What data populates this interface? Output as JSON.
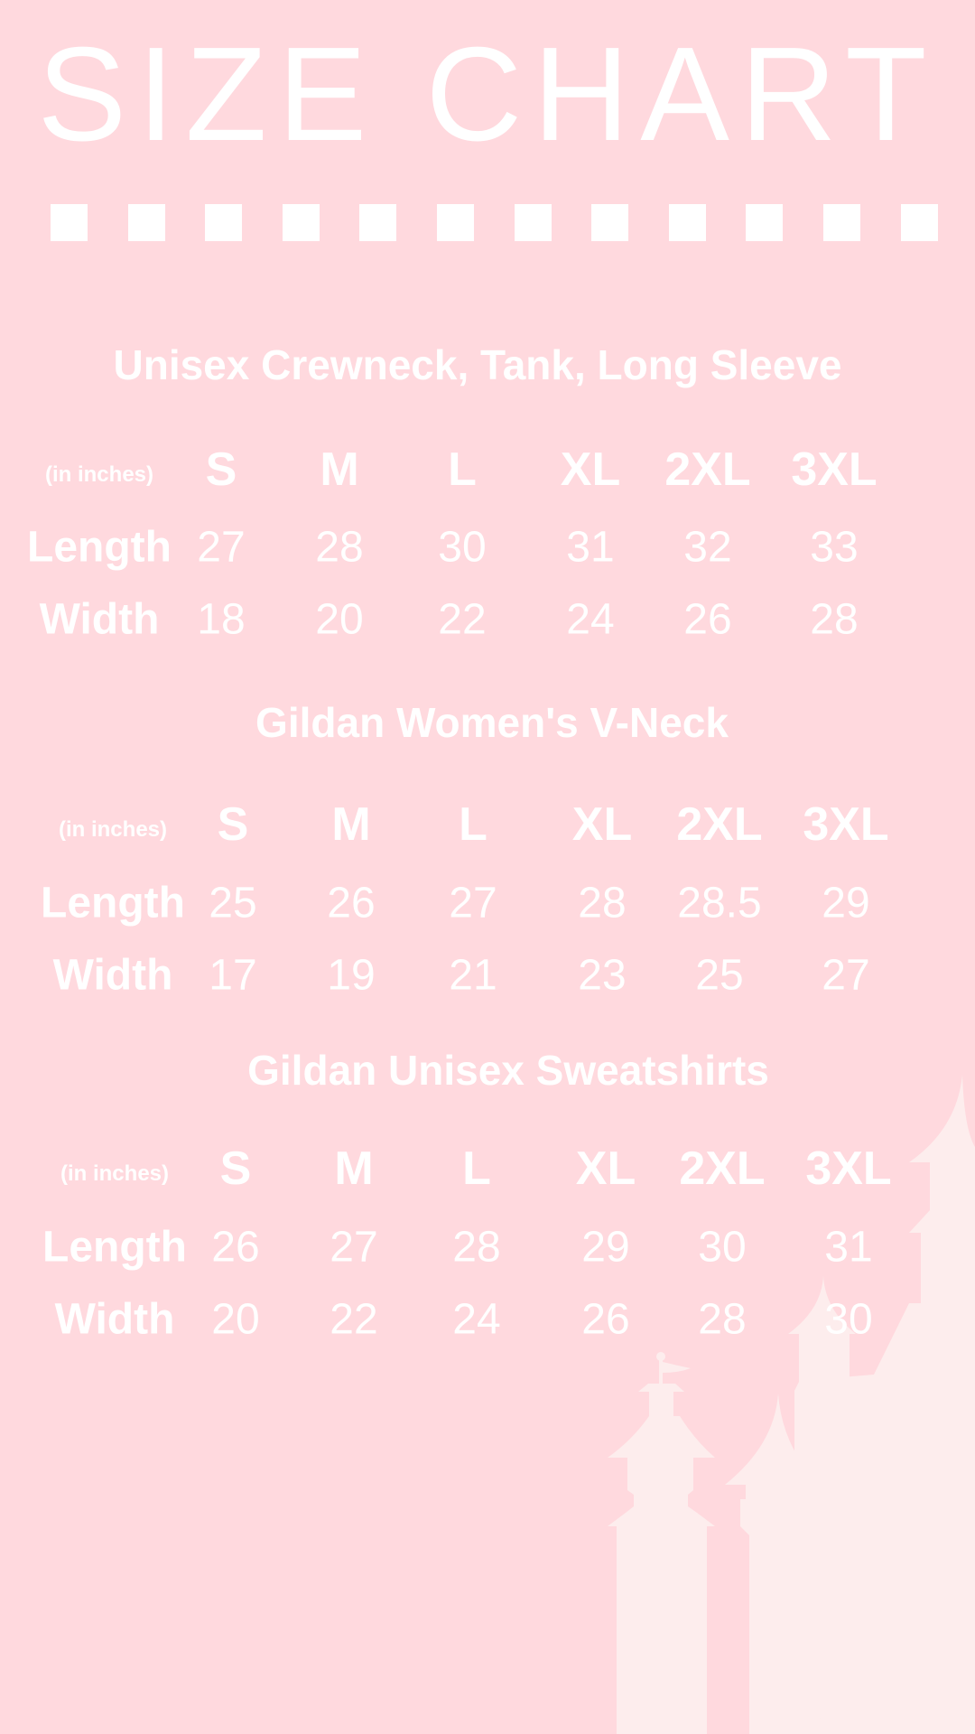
{
  "title": "SIZE CHART",
  "colors": {
    "background": "#FFD9DE",
    "text": "#FFFFFF",
    "castle": "#FDEDED"
  },
  "decoration": {
    "square_count": 12,
    "castle_silhouette": "castle-icon"
  },
  "sections": [
    {
      "heading": "Unisex Crewneck, Tank, Long Sleeve",
      "unit_label": "(in inches)",
      "sizes": [
        "S",
        "M",
        "L",
        "XL",
        "2XL",
        "3XL"
      ],
      "rows": [
        {
          "label": "Length",
          "values": [
            "27",
            "28",
            "30",
            "31",
            "32",
            "33"
          ]
        },
        {
          "label": "Width",
          "values": [
            "18",
            "20",
            "22",
            "24",
            "26",
            "28"
          ]
        }
      ]
    },
    {
      "heading": "Gildan Women's V-Neck",
      "unit_label": "(in inches)",
      "sizes": [
        "S",
        "M",
        "L",
        "XL",
        "2XL",
        "3XL"
      ],
      "rows": [
        {
          "label": "Length",
          "values": [
            "25",
            "26",
            "27",
            "28",
            "28.5",
            "29"
          ]
        },
        {
          "label": "Width",
          "values": [
            "17",
            "19",
            "21",
            "23",
            "25",
            "27"
          ]
        }
      ]
    },
    {
      "heading": "Gildan Unisex Sweatshirts",
      "unit_label": "(in inches)",
      "sizes": [
        "S",
        "M",
        "L",
        "XL",
        "2XL",
        "3XL"
      ],
      "rows": [
        {
          "label": "Length",
          "values": [
            "26",
            "27",
            "28",
            "29",
            "30",
            "31"
          ]
        },
        {
          "label": "Width",
          "values": [
            "20",
            "22",
            "24",
            "26",
            "28",
            "30"
          ]
        }
      ]
    }
  ]
}
